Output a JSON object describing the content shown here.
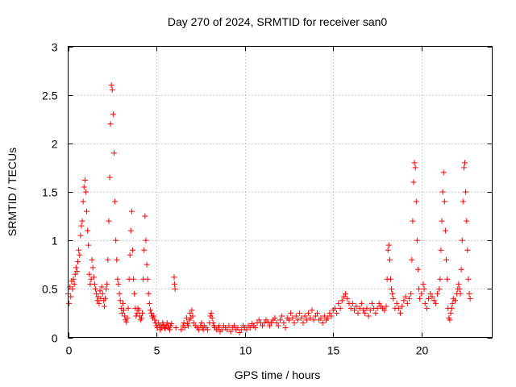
{
  "chart_data": {
    "type": "scatter",
    "title": "Day 270 of 2024, SRMTID for receiver san0",
    "xlabel": "GPS time / hours",
    "ylabel": "SRMTID / TECUs",
    "xlim": [
      0,
      24
    ],
    "ylim": [
      0,
      3
    ],
    "xticks": [
      0,
      5,
      10,
      15,
      20
    ],
    "xtick_labels": [
      "0",
      "5",
      "10",
      "15",
      "20"
    ],
    "yticks": [
      0,
      0.5,
      1,
      1.5,
      2,
      2.5,
      3
    ],
    "ytick_labels": [
      "0",
      "0.5",
      "1",
      "1.5",
      "2",
      "2.5",
      "3"
    ],
    "grid": true,
    "marker": "plus",
    "color": "#ff0000",
    "series": [
      {
        "name": "SRMTID",
        "points": [
          [
            0.0,
            0.45
          ],
          [
            0.05,
            0.35
          ],
          [
            0.1,
            0.52
          ],
          [
            0.15,
            0.42
          ],
          [
            0.2,
            0.58
          ],
          [
            0.25,
            0.5
          ],
          [
            0.3,
            0.6
          ],
          [
            0.35,
            0.55
          ],
          [
            0.4,
            0.65
          ],
          [
            0.45,
            0.72
          ],
          [
            0.5,
            0.68
          ],
          [
            0.55,
            0.78
          ],
          [
            0.6,
            0.9
          ],
          [
            0.65,
            0.85
          ],
          [
            0.7,
            1.05
          ],
          [
            0.75,
            1.15
          ],
          [
            0.8,
            1.2
          ],
          [
            0.85,
            1.4
          ],
          [
            0.9,
            1.55
          ],
          [
            0.95,
            1.62
          ],
          [
            1.0,
            1.5
          ],
          [
            1.05,
            1.3
          ],
          [
            1.1,
            1.1
          ],
          [
            1.15,
            0.95
          ],
          [
            1.2,
            0.65
          ],
          [
            1.25,
            0.55
          ],
          [
            1.3,
            0.6
          ],
          [
            1.35,
            0.8
          ],
          [
            1.4,
            0.72
          ],
          [
            1.45,
            0.62
          ],
          [
            1.5,
            0.55
          ],
          [
            1.55,
            0.5
          ],
          [
            1.6,
            0.45
          ],
          [
            1.65,
            0.38
          ],
          [
            1.7,
            0.42
          ],
          [
            1.75,
            0.35
          ],
          [
            1.8,
            0.48
          ],
          [
            1.85,
            0.4
          ],
          [
            1.9,
            0.52
          ],
          [
            1.95,
            0.45
          ],
          [
            2.0,
            0.38
          ],
          [
            2.05,
            0.32
          ],
          [
            2.1,
            0.4
          ],
          [
            2.15,
            0.5
          ],
          [
            2.2,
            0.55
          ],
          [
            2.25,
            0.8
          ],
          [
            2.3,
            1.2
          ],
          [
            2.35,
            1.65
          ],
          [
            2.4,
            2.2
          ],
          [
            2.45,
            2.6
          ],
          [
            2.5,
            2.55
          ],
          [
            2.55,
            2.3
          ],
          [
            2.6,
            1.9
          ],
          [
            2.65,
            1.4
          ],
          [
            2.7,
            1.0
          ],
          [
            2.75,
            0.8
          ],
          [
            2.8,
            0.6
          ],
          [
            2.85,
            0.55
          ],
          [
            2.9,
            0.45
          ],
          [
            2.95,
            0.38
          ],
          [
            3.0,
            0.3
          ],
          [
            3.05,
            0.25
          ],
          [
            3.1,
            0.35
          ],
          [
            3.15,
            0.28
          ],
          [
            3.2,
            0.22
          ],
          [
            3.25,
            0.18
          ],
          [
            3.3,
            0.16
          ],
          [
            3.35,
            0.2
          ],
          [
            3.4,
            0.3
          ],
          [
            3.45,
            0.6
          ],
          [
            3.5,
            0.85
          ],
          [
            3.55,
            1.1
          ],
          [
            3.6,
            1.3
          ],
          [
            3.65,
            0.9
          ],
          [
            3.7,
            0.6
          ],
          [
            3.75,
            0.45
          ],
          [
            3.8,
            0.3
          ],
          [
            3.85,
            0.22
          ],
          [
            3.9,
            0.25
          ],
          [
            3.95,
            0.3
          ],
          [
            4.0,
            0.28
          ],
          [
            4.05,
            0.22
          ],
          [
            4.1,
            0.18
          ],
          [
            4.15,
            0.2
          ],
          [
            4.2,
            0.25
          ],
          [
            4.25,
            0.6
          ],
          [
            4.3,
            0.9
          ],
          [
            4.35,
            1.25
          ],
          [
            4.4,
            1.0
          ],
          [
            4.45,
            0.75
          ],
          [
            4.5,
            0.6
          ],
          [
            4.55,
            0.45
          ],
          [
            4.6,
            0.35
          ],
          [
            4.65,
            0.28
          ],
          [
            4.7,
            0.25
          ],
          [
            4.75,
            0.22
          ],
          [
            4.8,
            0.2
          ],
          [
            4.85,
            0.22
          ],
          [
            4.9,
            0.18
          ],
          [
            4.95,
            0.15
          ],
          [
            5.0,
            0.12
          ],
          [
            5.05,
            0.1
          ],
          [
            5.1,
            0.15
          ],
          [
            5.15,
            0.12
          ],
          [
            5.2,
            0.08
          ],
          [
            5.25,
            0.12
          ],
          [
            5.3,
            0.1
          ],
          [
            5.35,
            0.15
          ],
          [
            5.4,
            0.13
          ],
          [
            5.45,
            0.1
          ],
          [
            5.5,
            0.09
          ],
          [
            5.55,
            0.12
          ],
          [
            5.6,
            0.15
          ],
          [
            5.65,
            0.12
          ],
          [
            5.7,
            0.1
          ],
          [
            5.75,
            0.08
          ],
          [
            5.8,
            0.12
          ],
          [
            5.85,
            0.14
          ],
          [
            6.0,
            0.62
          ],
          [
            6.02,
            0.55
          ],
          [
            6.05,
            0.5
          ],
          [
            6.1,
            0.1
          ],
          [
            6.4,
            0.08
          ],
          [
            6.5,
            0.12
          ],
          [
            6.55,
            0.15
          ],
          [
            6.6,
            0.1
          ],
          [
            6.7,
            0.2
          ],
          [
            6.75,
            0.14
          ],
          [
            6.8,
            0.12
          ],
          [
            6.85,
            0.18
          ],
          [
            6.9,
            0.25
          ],
          [
            6.95,
            0.2
          ],
          [
            7.0,
            0.28
          ],
          [
            7.05,
            0.22
          ],
          [
            7.1,
            0.15
          ],
          [
            7.2,
            0.12
          ],
          [
            7.3,
            0.1
          ],
          [
            7.4,
            0.08
          ],
          [
            7.5,
            0.12
          ],
          [
            7.55,
            0.15
          ],
          [
            7.6,
            0.1
          ],
          [
            7.65,
            0.08
          ],
          [
            7.7,
            0.12
          ],
          [
            7.8,
            0.1
          ],
          [
            7.9,
            0.08
          ],
          [
            8.0,
            0.15
          ],
          [
            8.05,
            0.22
          ],
          [
            8.1,
            0.25
          ],
          [
            8.15,
            0.2
          ],
          [
            8.2,
            0.15
          ],
          [
            8.25,
            0.12
          ],
          [
            8.3,
            0.1
          ],
          [
            8.4,
            0.08
          ],
          [
            8.5,
            0.1
          ],
          [
            8.55,
            0.12
          ],
          [
            8.6,
            0.06
          ],
          [
            8.7,
            0.08
          ],
          [
            8.8,
            0.12
          ],
          [
            8.9,
            0.1
          ],
          [
            9.0,
            0.08
          ],
          [
            9.1,
            0.12
          ],
          [
            9.2,
            0.06
          ],
          [
            9.3,
            0.1
          ],
          [
            9.4,
            0.12
          ],
          [
            9.5,
            0.08
          ],
          [
            9.6,
            0.1
          ],
          [
            9.7,
            0.05
          ],
          [
            9.8,
            0.08
          ],
          [
            9.9,
            0.12
          ],
          [
            10.0,
            0.1
          ],
          [
            10.1,
            0.08
          ],
          [
            10.2,
            0.12
          ],
          [
            10.3,
            0.1
          ],
          [
            10.4,
            0.14
          ],
          [
            10.5,
            0.12
          ],
          [
            10.6,
            0.1
          ],
          [
            10.7,
            0.15
          ],
          [
            10.8,
            0.18
          ],
          [
            10.9,
            0.15
          ],
          [
            11.0,
            0.12
          ],
          [
            11.1,
            0.15
          ],
          [
            11.2,
            0.18
          ],
          [
            11.3,
            0.16
          ],
          [
            11.4,
            0.12
          ],
          [
            11.5,
            0.15
          ],
          [
            11.6,
            0.18
          ],
          [
            11.7,
            0.2
          ],
          [
            11.8,
            0.15
          ],
          [
            11.9,
            0.12
          ],
          [
            12.0,
            0.18
          ],
          [
            12.1,
            0.22
          ],
          [
            12.2,
            0.15
          ],
          [
            12.3,
            0.1
          ],
          [
            12.4,
            0.2
          ],
          [
            12.5,
            0.18
          ],
          [
            12.6,
            0.25
          ],
          [
            12.7,
            0.2
          ],
          [
            12.8,
            0.15
          ],
          [
            12.9,
            0.22
          ],
          [
            13.0,
            0.18
          ],
          [
            13.1,
            0.25
          ],
          [
            13.2,
            0.2
          ],
          [
            13.3,
            0.15
          ],
          [
            13.4,
            0.22
          ],
          [
            13.5,
            0.18
          ],
          [
            13.6,
            0.25
          ],
          [
            13.7,
            0.2
          ],
          [
            13.8,
            0.28
          ],
          [
            13.9,
            0.18
          ],
          [
            14.0,
            0.22
          ],
          [
            14.1,
            0.25
          ],
          [
            14.2,
            0.18
          ],
          [
            14.3,
            0.2
          ],
          [
            14.4,
            0.15
          ],
          [
            14.5,
            0.22
          ],
          [
            14.6,
            0.18
          ],
          [
            14.7,
            0.2
          ],
          [
            14.8,
            0.25
          ],
          [
            14.9,
            0.22
          ],
          [
            15.0,
            0.28
          ],
          [
            15.1,
            0.3
          ],
          [
            15.2,
            0.25
          ],
          [
            15.3,
            0.35
          ],
          [
            15.4,
            0.3
          ],
          [
            15.5,
            0.38
          ],
          [
            15.6,
            0.42
          ],
          [
            15.7,
            0.45
          ],
          [
            15.8,
            0.4
          ],
          [
            15.9,
            0.35
          ],
          [
            16.0,
            0.3
          ],
          [
            16.1,
            0.35
          ],
          [
            16.2,
            0.28
          ],
          [
            16.3,
            0.32
          ],
          [
            16.4,
            0.25
          ],
          [
            16.5,
            0.3
          ],
          [
            16.6,
            0.35
          ],
          [
            16.7,
            0.28
          ],
          [
            16.8,
            0.25
          ],
          [
            16.9,
            0.3
          ],
          [
            17.0,
            0.22
          ],
          [
            17.1,
            0.28
          ],
          [
            17.2,
            0.35
          ],
          [
            17.3,
            0.3
          ],
          [
            17.4,
            0.25
          ],
          [
            17.5,
            0.3
          ],
          [
            17.6,
            0.35
          ],
          [
            17.7,
            0.32
          ],
          [
            17.8,
            0.3
          ],
          [
            17.9,
            0.28
          ],
          [
            18.0,
            0.32
          ],
          [
            18.05,
            0.6
          ],
          [
            18.1,
            0.9
          ],
          [
            18.15,
            0.95
          ],
          [
            18.2,
            0.8
          ],
          [
            18.25,
            0.6
          ],
          [
            18.3,
            0.5
          ],
          [
            18.35,
            0.45
          ],
          [
            18.4,
            0.4
          ],
          [
            18.5,
            0.3
          ],
          [
            18.6,
            0.35
          ],
          [
            18.7,
            0.3
          ],
          [
            18.8,
            0.25
          ],
          [
            18.9,
            0.32
          ],
          [
            19.0,
            0.38
          ],
          [
            19.1,
            0.42
          ],
          [
            19.2,
            0.35
          ],
          [
            19.3,
            0.4
          ],
          [
            19.4,
            0.45
          ],
          [
            19.45,
            0.8
          ],
          [
            19.5,
            1.2
          ],
          [
            19.55,
            1.6
          ],
          [
            19.6,
            1.8
          ],
          [
            19.65,
            1.75
          ],
          [
            19.7,
            1.4
          ],
          [
            19.75,
            1.0
          ],
          [
            19.8,
            0.7
          ],
          [
            19.85,
            0.5
          ],
          [
            19.9,
            0.4
          ],
          [
            20.0,
            0.45
          ],
          [
            20.1,
            0.55
          ],
          [
            20.15,
            0.5
          ],
          [
            20.2,
            0.35
          ],
          [
            20.3,
            0.3
          ],
          [
            20.4,
            0.4
          ],
          [
            20.5,
            0.45
          ],
          [
            20.6,
            0.42
          ],
          [
            20.7,
            0.38
          ],
          [
            20.8,
            0.35
          ],
          [
            20.9,
            0.45
          ],
          [
            21.0,
            0.5
          ],
          [
            21.05,
            0.6
          ],
          [
            21.1,
            0.9
          ],
          [
            21.15,
            1.2
          ],
          [
            21.2,
            1.5
          ],
          [
            21.25,
            1.7
          ],
          [
            21.3,
            1.4
          ],
          [
            21.35,
            1.1
          ],
          [
            21.4,
            0.8
          ],
          [
            21.45,
            0.6
          ],
          [
            21.5,
            0.3
          ],
          [
            21.55,
            0.2
          ],
          [
            21.6,
            0.18
          ],
          [
            21.65,
            0.25
          ],
          [
            21.7,
            0.3
          ],
          [
            21.75,
            0.35
          ],
          [
            21.8,
            0.4
          ],
          [
            21.9,
            0.38
          ],
          [
            22.0,
            0.45
          ],
          [
            22.05,
            0.5
          ],
          [
            22.1,
            0.55
          ],
          [
            22.15,
            0.5
          ],
          [
            22.2,
            0.45
          ],
          [
            22.25,
            0.7
          ],
          [
            22.3,
            1.0
          ],
          [
            22.35,
            1.4
          ],
          [
            22.4,
            1.75
          ],
          [
            22.45,
            1.8
          ],
          [
            22.5,
            1.5
          ],
          [
            22.55,
            1.2
          ],
          [
            22.6,
            0.9
          ],
          [
            22.65,
            0.6
          ],
          [
            22.7,
            0.45
          ],
          [
            22.75,
            0.4
          ]
        ]
      }
    ]
  }
}
